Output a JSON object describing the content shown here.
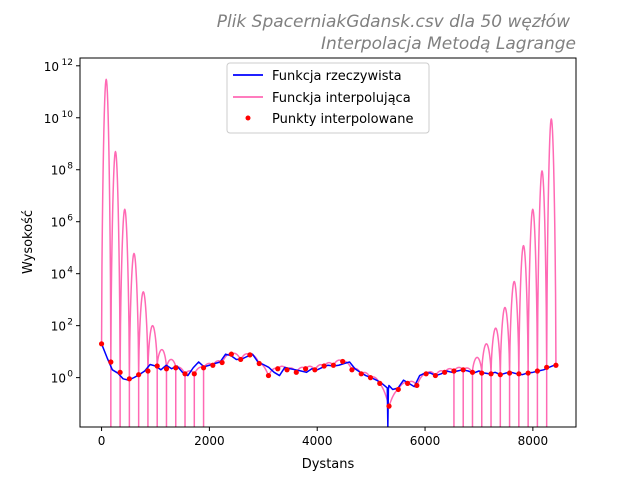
{
  "chart_data": {
    "type": "line",
    "title_lines": [
      "Plik SpacerniakGdansk.csv dla 50 węzłów",
      "Interpolacja Metodą Lagrange"
    ],
    "title_color": "#808080",
    "xlabel": "Dystans",
    "ylabel": "Wysokość",
    "yscale": "log",
    "xlim": [
      -400,
      8800
    ],
    "ylim_exp": [
      -1.9,
      12.3
    ],
    "x_ticks": [
      0,
      2000,
      4000,
      6000,
      8000
    ],
    "x_tick_labels": [
      "0",
      "2000",
      "4000",
      "6000",
      "8000"
    ],
    "y_tick_exps": [
      0,
      2,
      4,
      6,
      8,
      10,
      12
    ],
    "y_tick_labels": [
      "10",
      "10",
      "10",
      "10",
      "10",
      "10",
      "10"
    ],
    "y_tick_sups": [
      "0",
      "2",
      "4",
      "6",
      "8",
      "10",
      "12"
    ],
    "grid": false,
    "legend": {
      "placement": "upper-center",
      "entries": [
        "Funkcja rzeczywista",
        "Funckja interpolująca",
        "Punkty interpolowane"
      ]
    },
    "series": [
      {
        "name": "Funkcja rzeczywista",
        "color": "#0000ff",
        "style": "line",
        "x": [
          0,
          100,
          200,
          300,
          400,
          500,
          600,
          700,
          800,
          900,
          1000,
          1100,
          1200,
          1300,
          1400,
          1500,
          1600,
          1700,
          1800,
          1900,
          2000,
          2100,
          2200,
          2300,
          2400,
          2500,
          2600,
          2700,
          2800,
          2900,
          3000,
          3100,
          3200,
          3300,
          3400,
          3500,
          3600,
          3700,
          3800,
          3900,
          4000,
          4100,
          4200,
          4300,
          4400,
          4500,
          4600,
          4700,
          4800,
          4900,
          5000,
          5100,
          5200,
          5300,
          5310,
          5320,
          5330,
          5400,
          5500,
          5600,
          5700,
          5800,
          5900,
          6000,
          6100,
          6200,
          6300,
          6400,
          6500,
          6600,
          6700,
          6800,
          6900,
          7000,
          7100,
          7200,
          7300,
          7400,
          7500,
          7600,
          7700,
          7800,
          7900,
          8000,
          8100,
          8200,
          8300,
          8400
        ],
        "y": [
          20,
          6,
          2,
          1.5,
          0.9,
          0.8,
          1.0,
          1.3,
          1.8,
          3.2,
          2.8,
          2.0,
          3.0,
          2.2,
          2.8,
          1.6,
          1.2,
          2.4,
          4.0,
          2.6,
          3.0,
          3.5,
          4.0,
          8.0,
          7.0,
          5.0,
          5.2,
          6.5,
          8.0,
          4.0,
          3.2,
          2.5,
          1.6,
          1.2,
          2.5,
          2.2,
          2.0,
          1.8,
          1.6,
          2.2,
          2.0,
          2.5,
          3.0,
          2.8,
          3.0,
          3.5,
          4.0,
          2.2,
          1.6,
          1.2,
          1.0,
          0.8,
          0.6,
          0.4,
          0.012,
          0.35,
          0.5,
          0.35,
          0.4,
          0.8,
          0.6,
          0.45,
          1.2,
          1.5,
          1.5,
          1.2,
          1.4,
          1.8,
          1.6,
          1.8,
          2.0,
          1.8,
          1.5,
          1.8,
          1.5,
          1.4,
          1.6,
          1.3,
          1.5,
          1.6,
          1.4,
          1.3,
          1.5,
          1.6,
          1.8,
          2.0,
          2.5,
          3.0
        ]
      },
      {
        "name": "Funckja interpolująca",
        "color": "#ff69b4",
        "style": "oscillating-line",
        "nodes_x": [
          0,
          172,
          344,
          516,
          688,
          860,
          1032,
          1204,
          1376,
          1548,
          1720,
          1892,
          2064,
          2236,
          2408,
          2580,
          2752,
          2924,
          3096,
          3268,
          3440,
          3612,
          3784,
          3956,
          4128,
          4300,
          4472,
          4644,
          4816,
          4988,
          5160,
          5332,
          5504,
          5676,
          5848,
          6020,
          6192,
          6364,
          6536,
          6708,
          6880,
          7052,
          7224,
          7396,
          7568,
          7740,
          7912,
          8084,
          8256,
          8428
        ],
        "peaks": [
          300000000000.0,
          500000000.0,
          3000000.0,
          60000.0,
          2000.0,
          100.0,
          12,
          5,
          3,
          2,
          2,
          1.8,
          2,
          1.5,
          1.4,
          1.6,
          2,
          3,
          6,
          20,
          80,
          500.0,
          5000.0,
          120000.0,
          3000000.0,
          90000000.0,
          9000000000.0
        ],
        "dip_to_negative": true
      },
      {
        "name": "Punkty interpolowane",
        "color": "#ff0000",
        "style": "markers",
        "x": [
          0,
          172,
          344,
          516,
          688,
          860,
          1032,
          1204,
          1376,
          1548,
          1720,
          1892,
          2064,
          2236,
          2408,
          2580,
          2752,
          2924,
          3096,
          3268,
          3440,
          3612,
          3784,
          3956,
          4128,
          4300,
          4472,
          4644,
          4816,
          4988,
          5160,
          5332,
          5504,
          5676,
          5848,
          6020,
          6192,
          6364,
          6536,
          6708,
          6880,
          7052,
          7224,
          7396,
          7568,
          7740,
          7912,
          8084,
          8256,
          8428
        ],
        "y": [
          20,
          4,
          1.6,
          0.9,
          1.3,
          1.8,
          2.8,
          2.2,
          2.4,
          1.4,
          1.4,
          2.4,
          3.0,
          3.8,
          8.0,
          5.0,
          7.5,
          3.5,
          1.2,
          2.2,
          2.0,
          1.6,
          2.2,
          2.0,
          2.8,
          3.0,
          4.2,
          2.0,
          1.4,
          1.0,
          0.6,
          0.08,
          0.35,
          0.6,
          0.5,
          1.4,
          1.2,
          1.6,
          1.8,
          2.0,
          1.6,
          1.5,
          1.4,
          1.3,
          1.5,
          1.4,
          1.5,
          1.8,
          2.5,
          3.0
        ]
      }
    ]
  }
}
